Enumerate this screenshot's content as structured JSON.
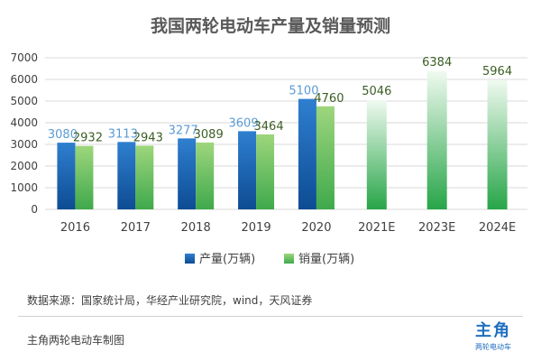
{
  "title": "我国两轮电动车产量及销量预测",
  "chart_data": {
    "type": "bar",
    "categories": [
      "2016",
      "2017",
      "2018",
      "2019",
      "2020",
      "2021E",
      "2023E",
      "2024E"
    ],
    "series": [
      {
        "name": "产量(万辆)",
        "color": "#1f6cbf",
        "label_color": "#5b9bd5",
        "values": [
          3080,
          3113,
          3277,
          3609,
          5100,
          null,
          null,
          null
        ]
      },
      {
        "name": "销量(万辆)",
        "color": "#6cc06a",
        "label_color": "#3b5e23",
        "values": [
          2932,
          2943,
          3089,
          3464,
          4760,
          5046,
          6384,
          5964
        ]
      }
    ],
    "ylim": [
      0,
      7000
    ],
    "yticks": [
      0,
      1000,
      2000,
      3000,
      4000,
      5000,
      6000,
      7000
    ],
    "title": "我国两轮电动车产量及销量预测",
    "legend": "bottom"
  },
  "source_note": "数据来源：国家统计局，华经产业研究院，wind，天风证券",
  "footer_note": "主角两轮电动车制图",
  "logo": {
    "main": "主角",
    "sub": "两轮电动车"
  }
}
